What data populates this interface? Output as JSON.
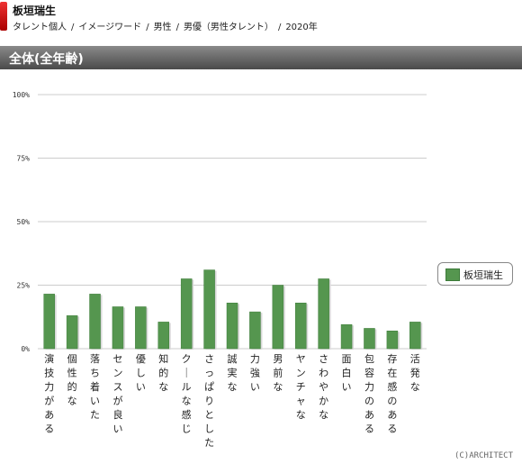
{
  "header": {
    "name": "板垣瑞生",
    "breadcrumb": [
      "タレント個人",
      "イメージワード",
      "男性",
      "男優（男性タレント）",
      "2020年"
    ]
  },
  "section_title": "全体(全年齢)",
  "footer": "(C)ARCHITECT",
  "colors": {
    "bar": "#55964f",
    "bar_shadow": "#d8d8d8",
    "grid": "#cccccc"
  },
  "chart_data": {
    "type": "bar",
    "categories": [
      "演技力がある",
      "個性的な",
      "落ち着いた",
      "センスが良い",
      "優しい",
      "知的な",
      "クールな感じ",
      "さっぱりとした",
      "誠実な",
      "力強い",
      "男前な",
      "ヤンチャな",
      "さわやかな",
      "面白い",
      "包容力のある",
      "存在感のある",
      "活発な"
    ],
    "series": [
      {
        "name": "板垣瑞生",
        "values": [
          21.5,
          13,
          21.5,
          16.5,
          16.5,
          10.5,
          27.5,
          31,
          18,
          14.5,
          25,
          18,
          27.5,
          9.5,
          8,
          7,
          10.5
        ]
      }
    ],
    "y_ticks": [
      "0%",
      "25%",
      "50%",
      "75%",
      "100%"
    ],
    "ylim": [
      0,
      100
    ],
    "grid": true,
    "legend": "right"
  }
}
